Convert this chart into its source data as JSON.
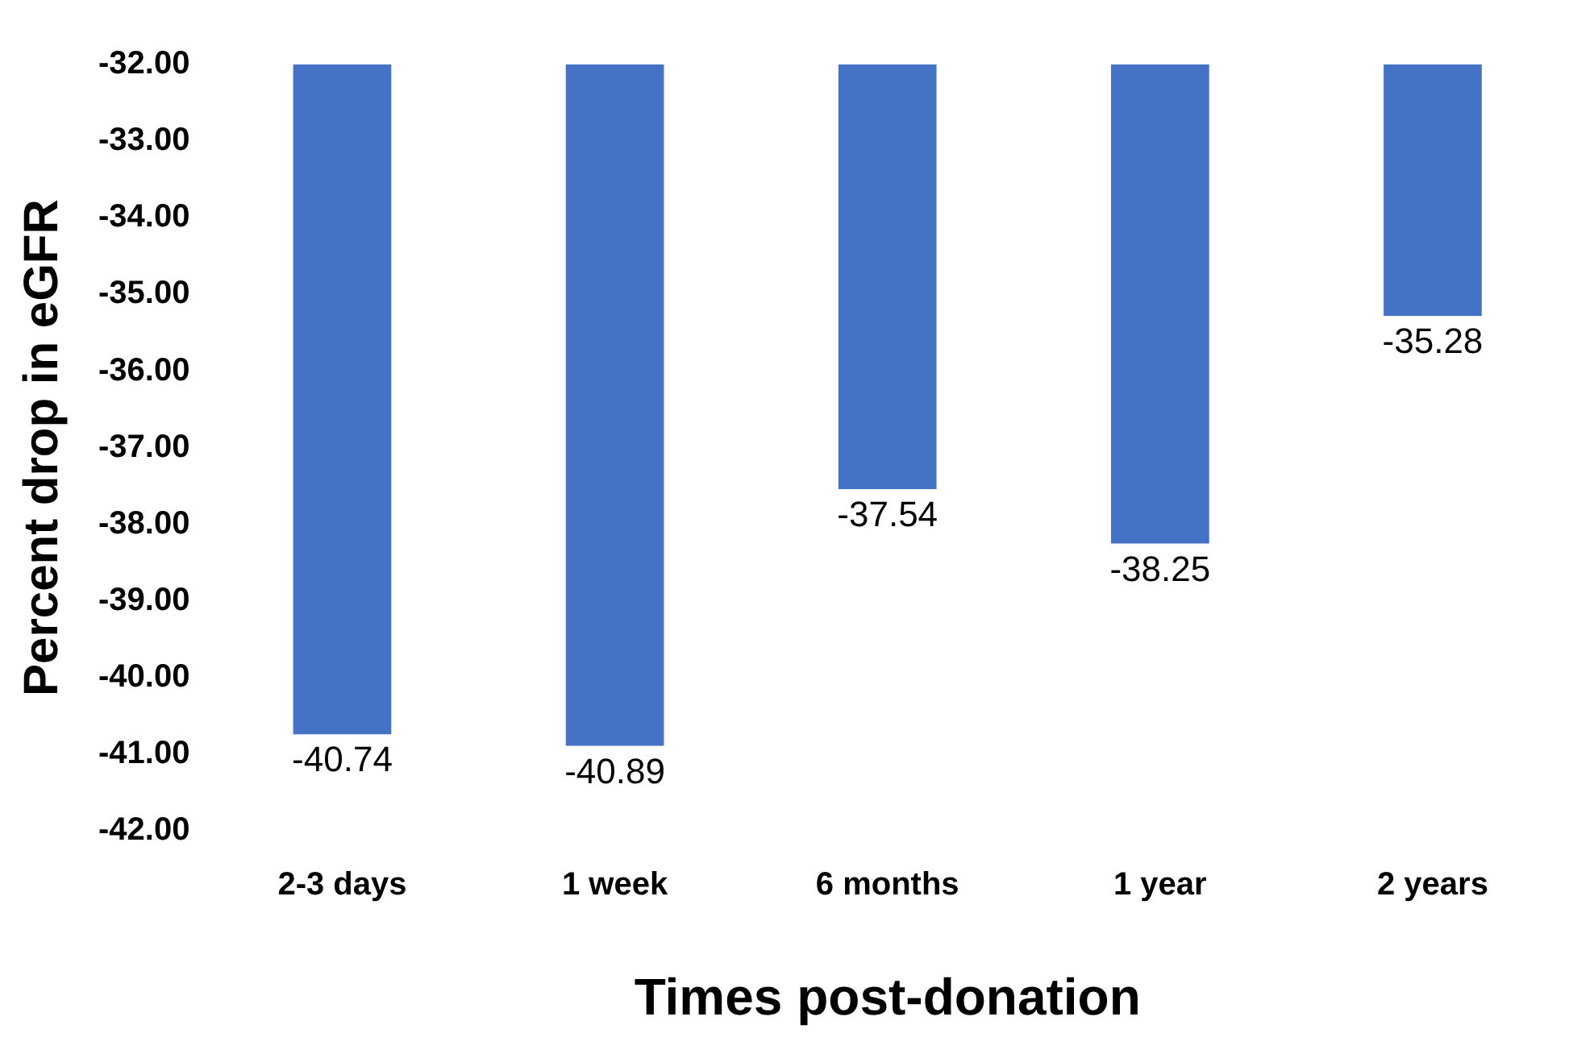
{
  "chart_data": {
    "type": "bar",
    "xlabel": "Times post-donation",
    "ylabel": "Percent drop in eGFR",
    "categories": [
      "2-3 days",
      "1 week",
      "6 months",
      "1 year",
      "2 years"
    ],
    "values": [
      -40.74,
      -40.89,
      -37.54,
      -38.25,
      -35.28
    ],
    "color": "#4472c4",
    "ylim": [
      -42,
      -32
    ],
    "yticks": [
      {
        "value": -42,
        "label": "-42.00"
      },
      {
        "value": -41,
        "label": "-41.00"
      },
      {
        "value": -40,
        "label": "-40.00"
      },
      {
        "value": -39,
        "label": "-39.00"
      },
      {
        "value": -38,
        "label": "-38.00"
      },
      {
        "value": -37,
        "label": "-37.00"
      },
      {
        "value": -36,
        "label": "-36.00"
      },
      {
        "value": -35,
        "label": "-35.00"
      },
      {
        "value": -34,
        "label": "-34.00"
      },
      {
        "value": -33,
        "label": "-33.00"
      },
      {
        "value": -32,
        "label": "-32.00"
      }
    ],
    "grid": false,
    "legend": false,
    "data_labels": true
  }
}
